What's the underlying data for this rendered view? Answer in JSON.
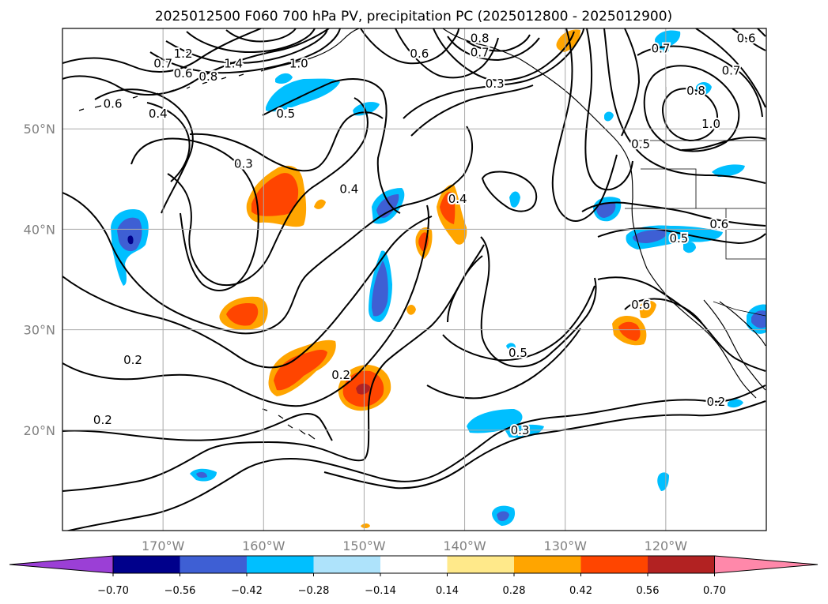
{
  "title": "2025012500 F060 700 hPa PV, precipitation PC (2025012800 - 2025012900)",
  "map": {
    "lon_range": [
      -180,
      -110
    ],
    "lat_range": [
      10,
      60
    ],
    "lat_ticks": [
      {
        "lat": 20,
        "label": "20°N"
      },
      {
        "lat": 30,
        "label": "30°N"
      },
      {
        "lat": 40,
        "label": "40°N"
      },
      {
        "lat": 50,
        "label": "50°N"
      }
    ],
    "lon_ticks": [
      {
        "lon": -170,
        "label": "170°W"
      },
      {
        "lon": -160,
        "label": "160°W"
      },
      {
        "lon": -150,
        "label": "150°W"
      },
      {
        "lon": -140,
        "label": "140°W"
      },
      {
        "lon": -130,
        "label": "130°W"
      },
      {
        "lon": -120,
        "label": "120°W"
      }
    ],
    "gridlines": true
  },
  "pv_contour_labels": [
    {
      "text": "1.2",
      "lon": -168.0,
      "lat": 57.5
    },
    {
      "text": "1.4",
      "lon": -163.0,
      "lat": 56.5
    },
    {
      "text": "0.7",
      "lon": -170.0,
      "lat": 56.5
    },
    {
      "text": "0.6",
      "lon": -168.0,
      "lat": 55.5
    },
    {
      "text": "0.8",
      "lon": -165.5,
      "lat": 55.2
    },
    {
      "text": "0.6",
      "lon": -175.0,
      "lat": 52.5
    },
    {
      "text": "0.4",
      "lon": -170.5,
      "lat": 51.5
    },
    {
      "text": "0.5",
      "lon": -157.8,
      "lat": 51.5
    },
    {
      "text": "1.0",
      "lon": -156.5,
      "lat": 56.5
    },
    {
      "text": "0.6",
      "lon": -144.5,
      "lat": 57.5
    },
    {
      "text": "0.8",
      "lon": -138.5,
      "lat": 59.0
    },
    {
      "text": "0.7",
      "lon": -138.5,
      "lat": 57.6
    },
    {
      "text": "0.3",
      "lon": -137.0,
      "lat": 54.5
    },
    {
      "text": "0.3",
      "lon": -162.0,
      "lat": 46.5
    },
    {
      "text": "0.4",
      "lon": -151.5,
      "lat": 44.0
    },
    {
      "text": "0.4",
      "lon": -140.7,
      "lat": 43.0
    },
    {
      "text": "0.7",
      "lon": -120.5,
      "lat": 58.0
    },
    {
      "text": "0.6",
      "lon": -112.0,
      "lat": 59.0
    },
    {
      "text": "0.7",
      "lon": -113.5,
      "lat": 55.8
    },
    {
      "text": "0.8",
      "lon": -117.0,
      "lat": 53.8
    },
    {
      "text": "1.0",
      "lon": -115.5,
      "lat": 50.5
    },
    {
      "text": "0.5",
      "lon": -122.5,
      "lat": 48.5
    },
    {
      "text": "0.6",
      "lon": -114.7,
      "lat": 40.5
    },
    {
      "text": "0.5",
      "lon": -118.7,
      "lat": 39.1
    },
    {
      "text": "0.6",
      "lon": -122.5,
      "lat": 32.5
    },
    {
      "text": "0.5",
      "lon": -134.7,
      "lat": 27.7
    },
    {
      "text": "0.2",
      "lon": -173.0,
      "lat": 27.0
    },
    {
      "text": "0.2",
      "lon": -152.3,
      "lat": 25.5
    },
    {
      "text": "0.2",
      "lon": -176.0,
      "lat": 21.0
    },
    {
      "text": "0.3",
      "lon": -134.5,
      "lat": 20.0
    },
    {
      "text": "0.2",
      "lon": -115.0,
      "lat": 22.8
    }
  ],
  "colorbar": {
    "tick_labels": [
      "−0.70",
      "−0.56",
      "−0.42",
      "−0.28",
      "−0.14",
      "0.14",
      "0.28",
      "0.42",
      "0.56",
      "0.70"
    ],
    "colors": [
      "#9b3fd6",
      "#00008b",
      "#3e5fd4",
      "#00bfff",
      "#aee3fb",
      "#ffffff",
      "#ffe98a",
      "#ffa500",
      "#ff4500",
      "#b22222",
      "#ff88aa"
    ]
  }
}
